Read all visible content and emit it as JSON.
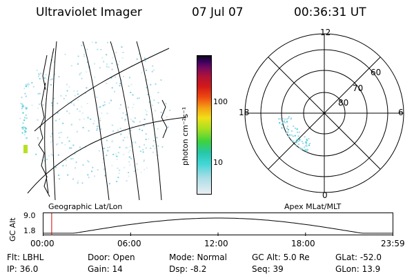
{
  "header": {
    "instrument": "Ultraviolet Imager",
    "date": "07 Jul 07",
    "time": "00:36:31 UT"
  },
  "colorbar": {
    "label": "photon cm⁻²s⁻¹",
    "ticks": [
      "100",
      "10"
    ],
    "scale": "log",
    "colors": [
      "#e8eef2",
      "#a8dde6",
      "#40d6d6",
      "#26c7a8",
      "#3ed23e",
      "#a6e020",
      "#f0e018",
      "#f6a414",
      "#ee4a10",
      "#d21818",
      "#b01238",
      "#7a0a5c",
      "#3a0060",
      "#0a0a14"
    ]
  },
  "polar": {
    "hour_labels": [
      "12",
      "18",
      "6",
      "0"
    ],
    "lat_labels": [
      "60",
      "70",
      "80"
    ]
  },
  "timeline": {
    "left_label": "Geographic Lat/Lon",
    "right_label": "Apex MLat/MLT",
    "y_axis_title": "GC Alt",
    "y_ticks": [
      "9.0",
      "1.8"
    ],
    "x_ticks": [
      "00:00",
      "06:00",
      "12:00",
      "18:00",
      "23:59"
    ],
    "marker_time": "00:36:31",
    "line_color": "#000000",
    "marker_color": "#cc0000"
  },
  "info": {
    "flt": "Flt: LBHL",
    "ip": "IP: 36.0",
    "door": "Door: Open",
    "gain": "Gain: 14",
    "mode": "Mode: Normal",
    "dsp": "Dsp:   -8.2",
    "gcalt": "GC Alt: 5.0 Re",
    "seq": "Seq: 39",
    "glat": "GLat: -52.0",
    "glon": "GLon:  13.9"
  }
}
